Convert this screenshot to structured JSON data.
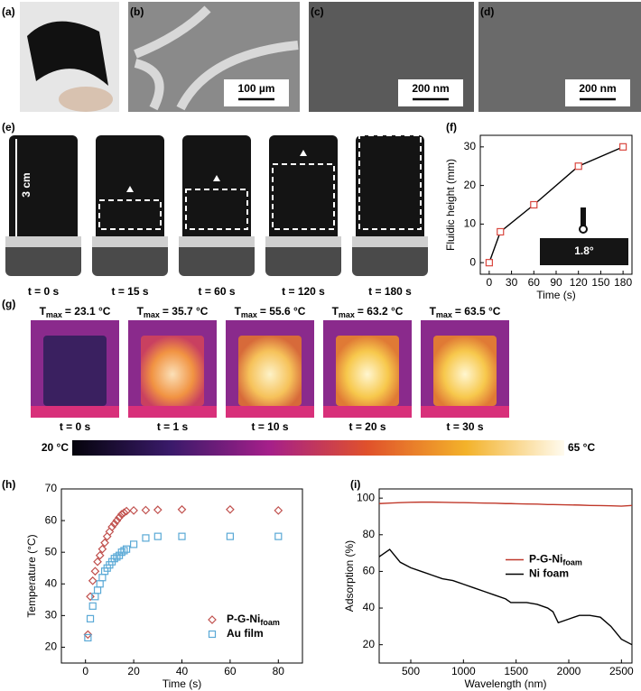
{
  "panel_labels": [
    "(a)",
    "(b)",
    "(c)",
    "(d)",
    "(e)",
    "(f)",
    "(g)",
    "(h)",
    "(i)"
  ],
  "scale_bars": [
    "100 µm",
    "200 nm",
    "200 nm"
  ],
  "wicking": {
    "length_label": "3 cm",
    "times": [
      "t = 0 s",
      "t = 15 s",
      "t = 60 s",
      "t = 120 s",
      "t = 180 s"
    ]
  },
  "thermal": {
    "symbol": "T",
    "subscript": "max",
    "values": [
      "= 23.1 °C",
      "= 35.7 °C",
      "= 55.6 °C",
      "= 63.2 °C",
      "= 63.5 °C"
    ],
    "times": [
      "t = 0 s",
      "t = 1 s",
      "t = 10 s",
      "t = 20 s",
      "t = 30 s"
    ],
    "colorbar_min": "20 °C",
    "colorbar_max": "65 °C"
  },
  "chart_data": [
    {
      "type": "line",
      "xlabel": "Time (s)",
      "ylabel": "Fluidic height (mm)",
      "x": [
        0,
        15,
        60,
        120,
        180
      ],
      "series": [
        {
          "values": [
            0,
            8,
            15,
            25,
            30
          ],
          "color": "#000000",
          "marker": "square",
          "marker_color": "#d9473f"
        }
      ],
      "xlim": [
        -12,
        192
      ],
      "ylim": [
        -3,
        33
      ],
      "xticks": [
        0,
        30,
        60,
        90,
        120,
        150,
        180
      ],
      "yticks": [
        0,
        10,
        20,
        30
      ],
      "annotations": [
        "1.8°"
      ]
    },
    {
      "type": "scatter",
      "xlabel": "Time (s)",
      "ylabel": "Temperature (°C)",
      "x": [
        1,
        2,
        3,
        4,
        5,
        6,
        7,
        8,
        9,
        10,
        11,
        12,
        13,
        14,
        15,
        16,
        17,
        20,
        25,
        30,
        40,
        60,
        80
      ],
      "series": [
        {
          "name": "P-G-Ni",
          "name_subscript": "foam",
          "color": "#c0504d",
          "marker": "diamond",
          "values": [
            24,
            36,
            41,
            44,
            47,
            49,
            51,
            53,
            55,
            56.5,
            58,
            59,
            60,
            61,
            62,
            62.5,
            63,
            63.2,
            63.3,
            63.4,
            63.5,
            63.5,
            63.2
          ]
        },
        {
          "name": "Au film",
          "color": "#5aa9d6",
          "marker": "square",
          "values": [
            23,
            29,
            33,
            36,
            38,
            40,
            42,
            44,
            45,
            46,
            47,
            48,
            48.5,
            49,
            50,
            50.5,
            51,
            52.5,
            54.5,
            55,
            55,
            55,
            55
          ]
        }
      ],
      "xlim": [
        -10,
        90
      ],
      "ylim": [
        15,
        70
      ],
      "xticks": [
        0,
        20,
        40,
        60,
        80
      ],
      "yticks": [
        20,
        30,
        40,
        50,
        60,
        70
      ],
      "legend": "lower right"
    },
    {
      "type": "line",
      "xlabel": "Wavelength (nm)",
      "ylabel": "Adsorption (%)",
      "x": [
        200,
        300,
        400,
        500,
        600,
        700,
        800,
        900,
        1000,
        1100,
        1200,
        1300,
        1400,
        1450,
        1500,
        1600,
        1700,
        1800,
        1850,
        1900,
        2000,
        2100,
        2200,
        2300,
        2400,
        2500,
        2600
      ],
      "series": [
        {
          "name": "P-G-Ni",
          "name_subscript": "foam",
          "color": "#c0392b",
          "values": [
            97,
            97.3,
            97.5,
            97.7,
            97.8,
            97.8,
            97.7,
            97.6,
            97.5,
            97.4,
            97.3,
            97.2,
            97,
            97,
            96.9,
            96.8,
            96.7,
            96.5,
            96.5,
            96.4,
            96.3,
            96.2,
            96,
            95.9,
            95.8,
            95.6,
            96
          ]
        },
        {
          "name": "Ni foam",
          "color": "#000000",
          "values": [
            68,
            72,
            65,
            62,
            60,
            58,
            56,
            55,
            53,
            51,
            49,
            47,
            45,
            43,
            43,
            43,
            42,
            40,
            38,
            32,
            34,
            36,
            36,
            35,
            30,
            23,
            20
          ]
        }
      ],
      "xlim": [
        200,
        2600
      ],
      "ylim": [
        10,
        105
      ],
      "xticks": [
        500,
        1000,
        1500,
        2000,
        2500
      ],
      "yticks": [
        20,
        40,
        60,
        80,
        100
      ],
      "legend": "center right"
    }
  ]
}
